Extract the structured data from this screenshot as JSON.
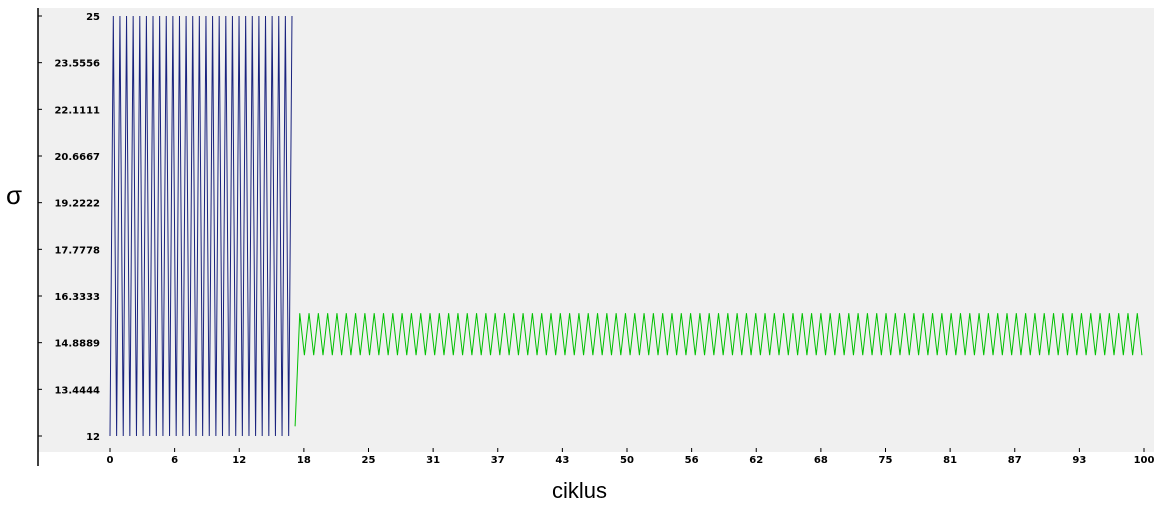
{
  "chart_data": {
    "type": "line",
    "title": "",
    "xlabel": "ciklus",
    "ylabel": "σ",
    "xlim": [
      0,
      100
    ],
    "ylim": [
      12,
      25
    ],
    "x_ticks": [
      "0",
      "6",
      "12",
      "18",
      "25",
      "31",
      "37",
      "43",
      "50",
      "56",
      "62",
      "68",
      "75",
      "81",
      "87",
      "93",
      "100"
    ],
    "y_ticks": [
      "25",
      "23.5556",
      "22.1111",
      "20.6667",
      "19.2222",
      "17.7778",
      "16.3333",
      "14.8889",
      "13.4444",
      "12"
    ],
    "grid": false,
    "legend": "none",
    "series": [
      {
        "color": "#1a237e",
        "oscillation": {
          "x_start": 0,
          "x_end": 17.6,
          "min": 12,
          "max": 25,
          "period": 0.64
        }
      },
      {
        "color": "#00c000",
        "oscillation": {
          "x_start": 17.9,
          "x_end": 100,
          "min": 14.5,
          "max": 15.8,
          "period": 0.9,
          "initial_value": 12.3
        }
      }
    ]
  },
  "colors": {
    "plot_background": "#f0f0f0",
    "axis": "#000000"
  }
}
